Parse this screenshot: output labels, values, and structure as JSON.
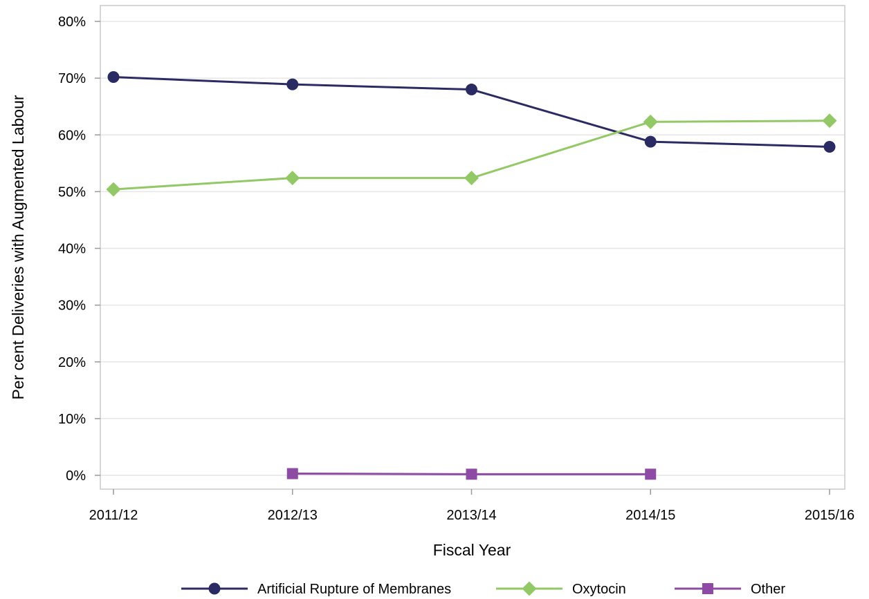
{
  "chart_data": {
    "type": "line",
    "xlabel": "Fiscal Year",
    "ylabel": "Per cent Deliveries with Augmented Labour",
    "categories": [
      "2011/12",
      "2012/13",
      "2013/14",
      "2014/15",
      "2015/16"
    ],
    "ylim": [
      0,
      80
    ],
    "y_ticks": [
      0,
      10,
      20,
      30,
      40,
      50,
      60,
      70,
      80
    ],
    "y_tick_labels": [
      "0%",
      "10%",
      "20%",
      "30%",
      "40%",
      "50%",
      "60%",
      "70%",
      "80%"
    ],
    "grid": true,
    "legend_position": "bottom",
    "series": [
      {
        "name": "Artificial Rupture of Membranes",
        "values": [
          70.2,
          68.9,
          68.0,
          58.8,
          57.9
        ],
        "color": "#2b2b63",
        "marker": "circle"
      },
      {
        "name": "Oxytocin",
        "values": [
          50.4,
          52.4,
          52.4,
          62.3,
          62.5
        ],
        "color": "#92c865",
        "marker": "diamond"
      },
      {
        "name": "Other",
        "values": [
          null,
          0.3,
          0.2,
          0.2,
          null
        ],
        "color": "#8d4ba3",
        "marker": "square"
      }
    ]
  }
}
